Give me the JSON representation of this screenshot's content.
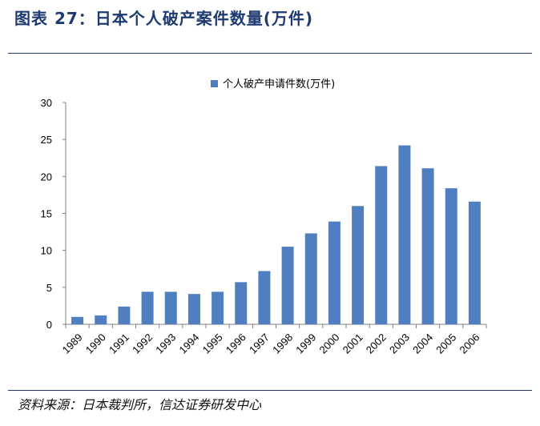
{
  "figure": {
    "title": "图表 27：日本个人破产案件数量(万件)",
    "source": "资料来源：日本裁判所，信达证券研发中心"
  },
  "colors": {
    "bar": "#4f7fc1",
    "rule": "#1f3a70",
    "axis": "#808080"
  },
  "chart_data": {
    "type": "bar",
    "title": "",
    "xlabel": "",
    "ylabel": "",
    "legend": "top-center",
    "grid": false,
    "categories": [
      "1989",
      "1990",
      "1991",
      "1992",
      "1993",
      "1994",
      "1995",
      "1996",
      "1997",
      "1998",
      "1999",
      "2000",
      "2001",
      "2002",
      "2003",
      "2004",
      "2005",
      "2006"
    ],
    "series": [
      {
        "name": "个人破产申请件数(万件)",
        "values": [
          1.0,
          1.2,
          2.4,
          4.4,
          4.4,
          4.1,
          4.4,
          5.7,
          7.2,
          10.5,
          12.3,
          13.9,
          16.0,
          21.4,
          24.2,
          21.1,
          18.4,
          16.6
        ]
      }
    ],
    "ylim": [
      0,
      30
    ],
    "yticks": [
      0,
      5,
      10,
      15,
      20,
      25,
      30
    ]
  }
}
